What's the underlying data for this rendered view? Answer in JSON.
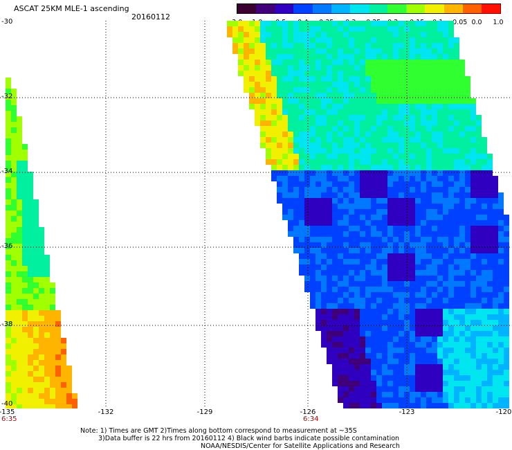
{
  "header": {
    "title": "ASCAT 25KM MLE-1 ascending",
    "date": "20160112"
  },
  "colorbar": {
    "labels": [
      "-3.0",
      "-1.0",
      "-0.5",
      "-0.4",
      "-0.35",
      "-0.3",
      "-0.25",
      "-0.2",
      "-0.15",
      "-0.1",
      "-0.05",
      "0.0",
      "1.0"
    ],
    "colors": [
      "#3a0030",
      "#40007a",
      "#3000c0",
      "#0040ff",
      "#0078ff",
      "#00b4ff",
      "#00e6f0",
      "#00f0a0",
      "#30ff30",
      "#a0ff00",
      "#f0f000",
      "#ffb400",
      "#ff6000",
      "#ff1000"
    ]
  },
  "axes": {
    "latitude_labels": [
      "-30",
      "-32",
      "-34",
      "-36",
      "-38",
      "-40"
    ],
    "longitude_labels": [
      "-135",
      "-132",
      "-129",
      "-126",
      "-123",
      "-120"
    ]
  },
  "pass_times": [
    "6:35",
    "6:34"
  ],
  "notes": [
    "Note: 1) Times are GMT 2)Times along bottom correspond to measurement at ~35S",
    "3)Data buffer is 22 hrs from 20160112 4) Black wind barbs indicate possible contamination",
    "NOAA/NESDIS/Center for Satellite Applications and Research"
  ]
}
